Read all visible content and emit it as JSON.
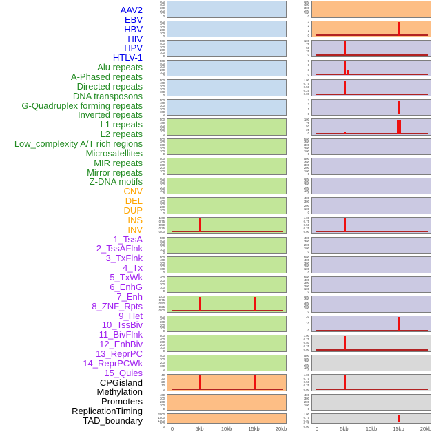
{
  "colors": {
    "label_groups": {
      "virus": "#0000EE",
      "repeat": "#228B22",
      "sv": "#FFA500",
      "chromatin": "#A020F0",
      "other": "#000000"
    },
    "panel_bg": {
      "blue": "#C6DBEF",
      "green": "#C2E699",
      "orange": "#FDBE85",
      "purple": "#CBC9E2",
      "gray": "#D9D9D9"
    },
    "spike": "#EE0F0F",
    "baseline": "#B22222",
    "panel_border": "#7E7E7E",
    "ytick_text": "#404040",
    "xtick_text": "#555555"
  },
  "x_axis": {
    "tick_labels": [
      "0",
      "5kb",
      "10kb",
      "15kb",
      "20kb"
    ],
    "tick_kb": [
      0,
      5,
      10,
      15,
      20
    ]
  },
  "chart_data": {
    "type": "area",
    "subtype": "multi-panel feature density profiles with red peak spikes",
    "x_range_kb": [
      0,
      20
    ],
    "x_tick_labels": [
      "0",
      "5kb",
      "10kb",
      "15kb",
      "20kb"
    ],
    "legend_position": "none",
    "grid": false,
    "columns": [
      {
        "panels": [
          {
            "label": "AAV2",
            "group": "virus",
            "bg": "blue",
            "yticks": [
              "500",
              "400",
              "300",
              "200",
              "100",
              "0"
            ],
            "ymax": 500,
            "baseline": false,
            "spikes": []
          },
          {
            "label": "EBV",
            "group": "virus",
            "bg": "blue",
            "yticks": [
              "500",
              "400",
              "300",
              "200",
              "100",
              "0"
            ],
            "ymax": 500,
            "baseline": false,
            "spikes": []
          },
          {
            "label": "HBV",
            "group": "virus",
            "bg": "blue",
            "yticks": [
              "500",
              "400",
              "300",
              "200",
              "100",
              "0"
            ],
            "ymax": 500,
            "baseline": false,
            "spikes": []
          },
          {
            "label": "HIV",
            "group": "virus",
            "bg": "blue",
            "yticks": [
              "500",
              "400",
              "300",
              "200",
              "100",
              "0"
            ],
            "ymax": 500,
            "baseline": false,
            "spikes": []
          },
          {
            "label": "HPV",
            "group": "virus",
            "bg": "blue",
            "yticks": [
              "500",
              "400",
              "300",
              "200",
              "100",
              "0"
            ],
            "ymax": 500,
            "baseline": false,
            "spikes": []
          },
          {
            "label": "HTLV-1",
            "group": "virus",
            "bg": "blue",
            "yticks": [
              "500",
              "400",
              "300",
              "200",
              "100",
              "0"
            ],
            "ymax": 500,
            "baseline": false,
            "spikes": []
          },
          {
            "label": "Alu repeats",
            "group": "repeat",
            "bg": "green",
            "yticks": [
              "500",
              "400",
              "300",
              "200",
              "100",
              "0"
            ],
            "ymax": 500,
            "baseline": false,
            "spikes": []
          },
          {
            "label": "A-Phased repeats",
            "group": "repeat",
            "bg": "green",
            "yticks": [
              "500",
              "400",
              "300",
              "200",
              "100",
              "0"
            ],
            "ymax": 500,
            "baseline": false,
            "spikes": []
          },
          {
            "label": "Directed repeats",
            "group": "repeat",
            "bg": "green",
            "yticks": [
              "500",
              "400",
              "300",
              "200",
              "100",
              "0"
            ],
            "ymax": 500,
            "baseline": false,
            "spikes": []
          },
          {
            "label": "DNA transposons",
            "group": "repeat",
            "bg": "green",
            "yticks": [
              "500",
              "400",
              "300",
              "200",
              "100",
              "0"
            ],
            "ymax": 500,
            "baseline": false,
            "spikes": []
          },
          {
            "label": "G-Quadruplex forming repeats",
            "group": "repeat",
            "bg": "green",
            "yticks": [
              "500",
              "400",
              "300",
              "200",
              "100",
              "0"
            ],
            "ymax": 500,
            "baseline": false,
            "spikes": []
          },
          {
            "label": "Inverted repeats",
            "group": "repeat",
            "bg": "green",
            "yticks": [
              "1.00",
              "0.75",
              "0.50",
              "0.25",
              "0.00"
            ],
            "ymax": 1.0,
            "baseline": true,
            "spikes": [
              {
                "x_kb": 5,
                "frac": 1.0,
                "value": 1.0
              }
            ]
          },
          {
            "label": "L1 repeats",
            "group": "repeat",
            "bg": "green",
            "yticks": [
              "500",
              "400",
              "300",
              "200",
              "100",
              "0"
            ],
            "ymax": 500,
            "baseline": false,
            "spikes": []
          },
          {
            "label": "L2 repeats",
            "group": "repeat",
            "bg": "green",
            "yticks": [
              "500",
              "400",
              "300",
              "200",
              "100",
              "0"
            ],
            "ymax": 500,
            "baseline": false,
            "spikes": []
          },
          {
            "label": "Low_complexity A/T rich regions",
            "group": "repeat",
            "bg": "green",
            "yticks": [
              "400",
              "300",
              "200",
              "100",
              "0"
            ],
            "ymax": 400,
            "baseline": false,
            "spikes": []
          },
          {
            "label": "Microsatellites",
            "group": "repeat",
            "bg": "green",
            "yticks": [
              "1.00",
              "0.75",
              "0.50",
              "0.25",
              "0.00"
            ],
            "ymax": 1.0,
            "baseline": true,
            "spikes": [
              {
                "x_kb": 5,
                "frac": 1.0,
                "value": 1.0
              },
              {
                "x_kb": 15,
                "frac": 1.0,
                "value": 1.0
              }
            ]
          },
          {
            "label": "MIR repeats",
            "group": "repeat",
            "bg": "green",
            "yticks": [
              "500",
              "400",
              "300",
              "200",
              "100",
              "0"
            ],
            "ymax": 500,
            "baseline": false,
            "spikes": []
          },
          {
            "label": "Mirror repeats",
            "group": "repeat",
            "bg": "green",
            "yticks": [
              "500",
              "400",
              "300",
              "200",
              "100",
              "0"
            ],
            "ymax": 500,
            "baseline": false,
            "spikes": []
          },
          {
            "label": "Z-DNA motifs",
            "group": "repeat",
            "bg": "green",
            "yticks": [
              "400",
              "300",
              "200",
              "100",
              "0"
            ],
            "ymax": 400,
            "baseline": false,
            "spikes": []
          },
          {
            "label": "CNV",
            "group": "sv",
            "bg": "orange",
            "yticks": [
              "40",
              "30",
              "20",
              "10",
              "0"
            ],
            "ymax": 40,
            "baseline": true,
            "spikes": [
              {
                "x_kb": 5,
                "frac": 1.0,
                "value": 40
              },
              {
                "x_kb": 15,
                "frac": 1.0,
                "value": 40
              }
            ]
          },
          {
            "label": "DEL",
            "group": "sv",
            "bg": "orange",
            "yticks": [
              "400",
              "300",
              "200",
              "100",
              "0"
            ],
            "ymax": 400,
            "baseline": false,
            "spikes": []
          },
          {
            "label": "DUP",
            "group": "sv",
            "bg": "orange",
            "yticks": [
              "2000",
              "1500",
              "1000",
              "500",
              "0"
            ],
            "ymax": 2000,
            "baseline": false,
            "spikes": [],
            "short": true
          }
        ]
      },
      {
        "panels": [
          {
            "label": "INS",
            "group": "sv",
            "bg": "orange",
            "yticks": [
              "500",
              "400",
              "300",
              "200",
              "100",
              "0"
            ],
            "ymax": 500,
            "baseline": false,
            "spikes": []
          },
          {
            "label": "INV",
            "group": "sv",
            "bg": "orange",
            "yticks": [
              "3",
              "2",
              "1",
              "0"
            ],
            "ymax": 3,
            "baseline": true,
            "spikes": [
              {
                "x_kb": 15,
                "frac": 1.0,
                "value": 3
              }
            ]
          },
          {
            "label": "1_TssA",
            "group": "chromatin",
            "bg": "purple",
            "yticks": [
              "100",
              "75",
              "50",
              "25",
              "0"
            ],
            "ymax": 100,
            "baseline": true,
            "spikes": [
              {
                "x_kb": 5,
                "frac": 1.0,
                "value": 100
              }
            ]
          },
          {
            "label": "2_TssAFlnk",
            "group": "chromatin",
            "bg": "purple",
            "yticks": [
              "9",
              "6",
              "3",
              "0"
            ],
            "ymax": 9,
            "baseline": true,
            "spikes": [
              {
                "x_kb": 5,
                "frac": 1.0,
                "value": 9
              },
              {
                "x_kb": 5.6,
                "frac": 0.33,
                "value": 3
              }
            ]
          },
          {
            "label": "3_TxFlnk",
            "group": "chromatin",
            "bg": "purple",
            "yticks": [
              "1.00",
              "0.75",
              "0.50",
              "0.25",
              "0.00"
            ],
            "ymax": 1.0,
            "baseline": true,
            "spikes": [
              {
                "x_kb": 5,
                "frac": 1.0,
                "value": 1.0
              }
            ]
          },
          {
            "label": "4_Tx",
            "group": "chromatin",
            "bg": "purple",
            "yticks": [
              "3",
              "2",
              "1",
              "0"
            ],
            "ymax": 3,
            "baseline": true,
            "spikes": [
              {
                "x_kb": 15,
                "frac": 1.0,
                "value": 3
              }
            ]
          },
          {
            "label": "5_TxWk",
            "group": "chromatin",
            "bg": "purple",
            "yticks": [
              "100",
              "75",
              "50",
              "25",
              "0"
            ],
            "ymax": 100,
            "baseline": true,
            "spikes": [
              {
                "x_kb": 15,
                "frac": 1.0,
                "value": 100,
                "w": 5
              },
              {
                "x_kb": 5,
                "frac": 0.12,
                "value": 12
              }
            ]
          },
          {
            "label": "6_EnhG",
            "group": "chromatin",
            "bg": "purple",
            "yticks": [
              "500",
              "400",
              "300",
              "200",
              "100",
              "0"
            ],
            "ymax": 500,
            "baseline": false,
            "spikes": []
          },
          {
            "label": "7_Enh",
            "group": "chromatin",
            "bg": "purple",
            "yticks": [
              "500",
              "400",
              "300",
              "200",
              "100",
              "0"
            ],
            "ymax": 500,
            "baseline": false,
            "spikes": []
          },
          {
            "label": "8_ZNF_Rpts",
            "group": "chromatin",
            "bg": "purple",
            "yticks": [
              "500",
              "400",
              "300",
              "200",
              "100",
              "0"
            ],
            "ymax": 500,
            "baseline": false,
            "spikes": []
          },
          {
            "label": "9_Het",
            "group": "chromatin",
            "bg": "purple",
            "yticks": [
              "400",
              "300",
              "200",
              "100",
              "0"
            ],
            "ymax": 400,
            "baseline": false,
            "spikes": []
          },
          {
            "label": "10_TssBiv",
            "group": "chromatin",
            "bg": "purple",
            "yticks": [
              "1.00",
              "0.75",
              "0.50",
              "0.25",
              "0.00"
            ],
            "ymax": 1.0,
            "baseline": true,
            "spikes": [
              {
                "x_kb": 5,
                "frac": 1.0,
                "value": 1.0
              }
            ]
          },
          {
            "label": "11_BivFlnk",
            "group": "chromatin",
            "bg": "purple",
            "yticks": [
              "400",
              "300",
              "200",
              "100",
              "0"
            ],
            "ymax": 400,
            "baseline": false,
            "spikes": []
          },
          {
            "label": "12_EnhBiv",
            "group": "chromatin",
            "bg": "purple",
            "yticks": [
              "500",
              "400",
              "300",
              "200",
              "100",
              "0"
            ],
            "ymax": 500,
            "baseline": false,
            "spikes": []
          },
          {
            "label": "13_ReprPC",
            "group": "chromatin",
            "bg": "purple",
            "yticks": [
              "500",
              "400",
              "300",
              "200",
              "100",
              "0"
            ],
            "ymax": 500,
            "baseline": false,
            "spikes": []
          },
          {
            "label": "14_ReprPCWk",
            "group": "chromatin",
            "bg": "purple",
            "yticks": [
              "500",
              "400",
              "300",
              "200",
              "100",
              "0"
            ],
            "ymax": 500,
            "baseline": false,
            "spikes": []
          },
          {
            "label": "15_Quies",
            "group": "chromatin",
            "bg": "purple",
            "yticks": [
              "20",
              "10",
              "0"
            ],
            "ymax": 20,
            "baseline": true,
            "spikes": [
              {
                "x_kb": 15,
                "frac": 1.0,
                "value": 20
              }
            ]
          },
          {
            "label": "CPGisland",
            "group": "other",
            "bg": "gray",
            "yticks": [
              "1.00",
              "0.75",
              "0.50",
              "0.25",
              "0.00"
            ],
            "ymax": 1.0,
            "baseline": true,
            "spikes": [
              {
                "x_kb": 5,
                "frac": 1.0,
                "value": 1.0
              }
            ]
          },
          {
            "label": "Methylation",
            "group": "other",
            "bg": "gray",
            "yticks": [
              "500",
              "400",
              "300",
              "200",
              "100",
              "0"
            ],
            "ymax": 500,
            "baseline": false,
            "spikes": []
          },
          {
            "label": "Promoters",
            "group": "other",
            "bg": "gray",
            "yticks": [
              "1.00",
              "0.75",
              "0.50",
              "0.25",
              "0.00"
            ],
            "ymax": 1.0,
            "baseline": true,
            "spikes": [
              {
                "x_kb": 5,
                "frac": 1.0,
                "value": 1.0
              }
            ]
          },
          {
            "label": "ReplicationTiming",
            "group": "other",
            "bg": "gray",
            "yticks": [
              "400",
              "300",
              "200",
              "100",
              "0"
            ],
            "ymax": 400,
            "baseline": false,
            "spikes": []
          },
          {
            "label": "TAD_boundary",
            "group": "other",
            "bg": "gray",
            "yticks": [
              "1.00",
              "0.75",
              "0.50",
              "0.25",
              "0.00"
            ],
            "ymax": 1.0,
            "baseline": true,
            "spikes": [
              {
                "x_kb": 15,
                "frac": 1.0,
                "value": 1.0
              }
            ],
            "short": true
          }
        ]
      }
    ]
  }
}
